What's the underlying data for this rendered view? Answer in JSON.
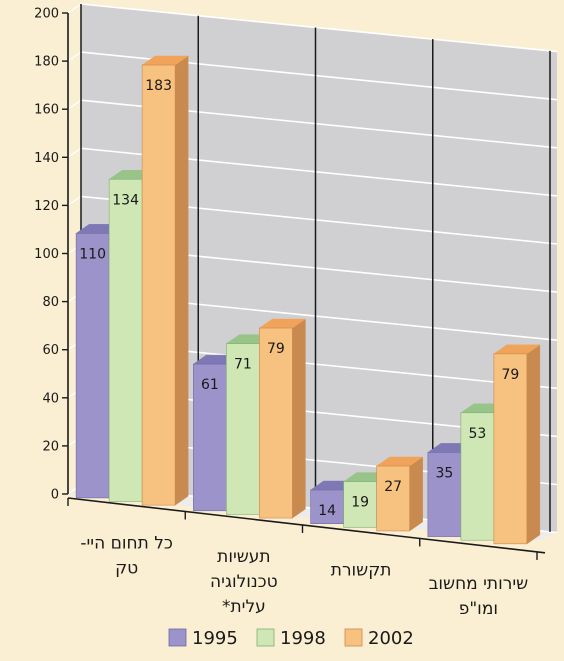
{
  "chart_data": {
    "type": "bar",
    "title": "",
    "xlabel": "",
    "ylabel": "",
    "ylim": [
      0,
      200
    ],
    "yticks": [
      0,
      20,
      40,
      60,
      80,
      100,
      120,
      140,
      160,
      180,
      200
    ],
    "grid": true,
    "three_d": true,
    "legend_position": "bottom",
    "categories": [
      [
        "כל תחום היי-",
        "טק"
      ],
      [
        "תעשיות",
        "טכנולוגיה",
        "עלית*"
      ],
      [
        "תקשורת"
      ],
      [
        "שירותי מחשוב",
        "ומו\"פ"
      ]
    ],
    "series": [
      {
        "name": "1995",
        "values": [
          110,
          61,
          14,
          35
        ]
      },
      {
        "name": "1998",
        "values": [
          134,
          71,
          19,
          53
        ]
      },
      {
        "name": "2002",
        "values": [
          183,
          79,
          27,
          79
        ]
      }
    ],
    "colors": {
      "series_front": [
        "#9b93c9",
        "#cfe6b5",
        "#f7c17f"
      ],
      "series_top": [
        "#7e78b5",
        "#98c48a",
        "#f0a35a"
      ],
      "series_side": [
        "#6f69a3",
        "#7fae74",
        "#c98a4f"
      ],
      "wall": "#d0d0d2",
      "floor": "#ececec",
      "grid": "#ffffff",
      "divider": "#1a1a1a",
      "axis": "#1a1a1a",
      "text": "#1a1a1a"
    }
  }
}
